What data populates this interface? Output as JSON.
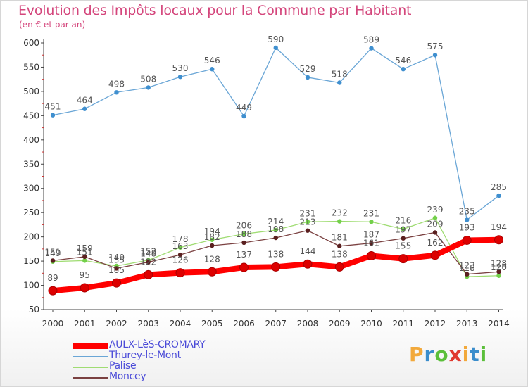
{
  "title": "Evolution des Impôts locaux pour la Commune par Habitant",
  "subtitle": "(en € et par an)",
  "brand": {
    "text": "Proxiti",
    "letters": [
      {
        "ch": "P",
        "color": "#f2a93b"
      },
      {
        "ch": "r",
        "color": "#3a8dcc"
      },
      {
        "ch": "o",
        "color": "#5bbf3a"
      },
      {
        "ch": "x",
        "color": "#e0392f"
      },
      {
        "ch": "i",
        "color": "#f2a93b"
      },
      {
        "ch": "t",
        "color": "#3a8dcc"
      },
      {
        "ch": "i",
        "color": "#5bbf3a"
      }
    ]
  },
  "chart_data": {
    "type": "line",
    "title": "Evolution des Impôts locaux pour la Commune par Habitant",
    "ylabel": "(en € et par an)",
    "xlabel": "",
    "categories": [
      "2000",
      "2001",
      "2002",
      "2003",
      "2004",
      "2005",
      "2006",
      "2007",
      "2008",
      "2009",
      "2010",
      "2011",
      "2012",
      "2013",
      "2014"
    ],
    "ylim": [
      50,
      600
    ],
    "yticks": [
      50,
      100,
      150,
      200,
      250,
      300,
      350,
      400,
      450,
      500,
      550,
      600
    ],
    "grid": false,
    "legend_position": "bottom-left",
    "series": [
      {
        "name": "AULX-LèS-CROMARY",
        "color": "#ff0000",
        "marker_color": "#dd0000",
        "width": "thick",
        "values": [
          89,
          95,
          105,
          122,
          126,
          128,
          137,
          138,
          144,
          138,
          161,
          155,
          162,
          193,
          194
        ]
      },
      {
        "name": "Thurey-le-Mont",
        "color": "#6aa6d6",
        "marker_color": "#3f8fcf",
        "width": "thin",
        "values": [
          451,
          464,
          498,
          508,
          530,
          546,
          449,
          590,
          529,
          518,
          589,
          546,
          575,
          235,
          285
        ]
      },
      {
        "name": "Palise",
        "color": "#9fdc72",
        "marker_color": "#73d04a",
        "width": "thin",
        "values": [
          149,
          151,
          140,
          152,
          178,
          194,
          206,
          214,
          231,
          232,
          231,
          216,
          239,
          118,
          120
        ]
      },
      {
        "name": "Moncey",
        "color": "#7a4040",
        "marker_color": "#5a1f1f",
        "width": "thin",
        "values": [
          151,
          159,
          135,
          148,
          163,
          182,
          188,
          198,
          213,
          181,
          187,
          197,
          209,
          123,
          128
        ]
      }
    ]
  }
}
